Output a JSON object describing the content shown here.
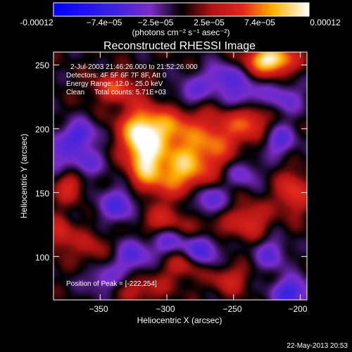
{
  "colorbar": {
    "tick_labels": [
      "-0.00012",
      "−7.4e−05",
      "−2.5e−05",
      "2.5e−05",
      "7.4e−05",
      "0.00012"
    ],
    "unit_label": "(photons cm⁻² s⁻¹ asec⁻²)",
    "colors": [
      "#0000ff",
      "#7a2cc8",
      "#000000",
      "#e2261b",
      "#ffffff"
    ]
  },
  "chart_data": {
    "type": "heatmap",
    "title": "Reconstructed RHESSI Image",
    "xlabel": "Heliocentric X (arcsec)",
    "ylabel": "Heliocentric Y (arcsec)",
    "xlim": [
      -385,
      -195
    ],
    "ylim": [
      66,
      260
    ],
    "x_ticks": [
      {
        "value": -350,
        "label": "−350"
      },
      {
        "value": -300,
        "label": "−300"
      },
      {
        "value": -250,
        "label": "−250"
      },
      {
        "value": -200,
        "label": "−200"
      }
    ],
    "y_ticks": [
      {
        "value": 100,
        "label": "100"
      },
      {
        "value": 150,
        "label": "150"
      },
      {
        "value": 200,
        "label": "200"
      },
      {
        "value": 250,
        "label": "250"
      }
    ],
    "color_range": [
      -0.00012,
      0.00012
    ],
    "peak": {
      "x": -222,
      "y": 254,
      "value": 0.00012
    },
    "blobs": [
      {
        "x": -222,
        "y": 254,
        "sx": 12,
        "sy": 8,
        "value": 0.00012
      },
      {
        "x": -338,
        "y": 232,
        "sx": 12,
        "sy": 8,
        "value": 5.5e-05
      },
      {
        "x": -300,
        "y": 200,
        "sx": 18,
        "sy": 12,
        "value": 7.5e-05
      },
      {
        "x": -322,
        "y": 197,
        "sx": 10,
        "sy": 14,
        "value": 6.5e-05
      },
      {
        "x": -316,
        "y": 175,
        "sx": 9,
        "sy": 16,
        "value": 8.5e-05
      },
      {
        "x": -263,
        "y": 190,
        "sx": 12,
        "sy": 14,
        "value": 5.5e-05
      },
      {
        "x": -238,
        "y": 205,
        "sx": 11,
        "sy": 10,
        "value": 6e-05
      },
      {
        "x": -286,
        "y": 178,
        "sx": 13,
        "sy": 10,
        "value": 5e-05
      },
      {
        "x": -290,
        "y": 162,
        "sx": 16,
        "sy": 11,
        "value": 7e-05
      },
      {
        "x": -373,
        "y": 156,
        "sx": 8,
        "sy": 9,
        "value": 5e-05
      },
      {
        "x": -205,
        "y": 150,
        "sx": 9,
        "sy": 12,
        "value": 5.5e-05
      },
      {
        "x": -238,
        "y": 128,
        "sx": 10,
        "sy": 10,
        "value": 5e-05
      },
      {
        "x": -305,
        "y": 128,
        "sx": 14,
        "sy": 9,
        "value": 4e-05
      },
      {
        "x": -270,
        "y": 120,
        "sx": 12,
        "sy": 9,
        "value": 3.5e-05
      },
      {
        "x": -380,
        "y": 118,
        "sx": 7,
        "sy": 10,
        "value": 4.5e-05
      },
      {
        "x": -287,
        "y": 93,
        "sx": 12,
        "sy": 8,
        "value": 4e-05
      },
      {
        "x": -253,
        "y": 82,
        "sx": 10,
        "sy": 8,
        "value": 4e-05
      },
      {
        "x": -318,
        "y": 75,
        "sx": 14,
        "sy": 7,
        "value": 3.5e-05
      },
      {
        "x": -357,
        "y": 107,
        "sx": 10,
        "sy": 10,
        "value": 3e-05
      },
      {
        "x": -385,
        "y": 182,
        "sx": 8,
        "sy": 12,
        "value": -3.5e-05
      },
      {
        "x": -365,
        "y": 195,
        "sx": 9,
        "sy": 8,
        "value": -6e-05
      },
      {
        "x": -363,
        "y": 173,
        "sx": 11,
        "sy": 9,
        "value": -4.5e-05
      },
      {
        "x": -335,
        "y": 140,
        "sx": 12,
        "sy": 10,
        "value": -5.5e-05
      },
      {
        "x": -270,
        "y": 145,
        "sx": 10,
        "sy": 9,
        "value": -5.5e-05
      },
      {
        "x": -300,
        "y": 112,
        "sx": 10,
        "sy": 8,
        "value": -4.5e-05
      },
      {
        "x": -326,
        "y": 100,
        "sx": 10,
        "sy": 9,
        "value": -5e-05
      },
      {
        "x": -273,
        "y": 106,
        "sx": 10,
        "sy": 10,
        "value": -7e-05
      },
      {
        "x": -258,
        "y": 240,
        "sx": 11,
        "sy": 8,
        "value": -5e-05
      },
      {
        "x": -242,
        "y": 226,
        "sx": 10,
        "sy": 8,
        "value": -4.5e-05
      },
      {
        "x": -212,
        "y": 224,
        "sx": 11,
        "sy": 9,
        "value": -4e-05
      },
      {
        "x": -216,
        "y": 191,
        "sx": 9,
        "sy": 9,
        "value": -5e-05
      },
      {
        "x": -222,
        "y": 102,
        "sx": 9,
        "sy": 9,
        "value": -4.5e-05
      },
      {
        "x": -207,
        "y": 72,
        "sx": 10,
        "sy": 8,
        "value": -7e-05
      },
      {
        "x": -282,
        "y": 228,
        "sx": 10,
        "sy": 8,
        "value": -4e-05
      },
      {
        "x": -243,
        "y": 165,
        "sx": 9,
        "sy": 8,
        "value": -4e-05
      },
      {
        "x": -348,
        "y": 82,
        "sx": 10,
        "sy": 8,
        "value": -4e-05
      }
    ]
  },
  "annotations": {
    "time_range": "2-Jul-2003 21:46:26.000 to 21:52:26.000",
    "detectors": "Detectors: 4F 5F 6F 7F 8F, Att 0",
    "energy_range": "Energy Range: 12.0 - 25.0 keV",
    "method_counts": "Clean     Total counts: 5.71E+03",
    "peak_position": "Position of Peak = [-222,254]"
  },
  "footer": {
    "timestamp": "22-May-2013 20:53"
  }
}
